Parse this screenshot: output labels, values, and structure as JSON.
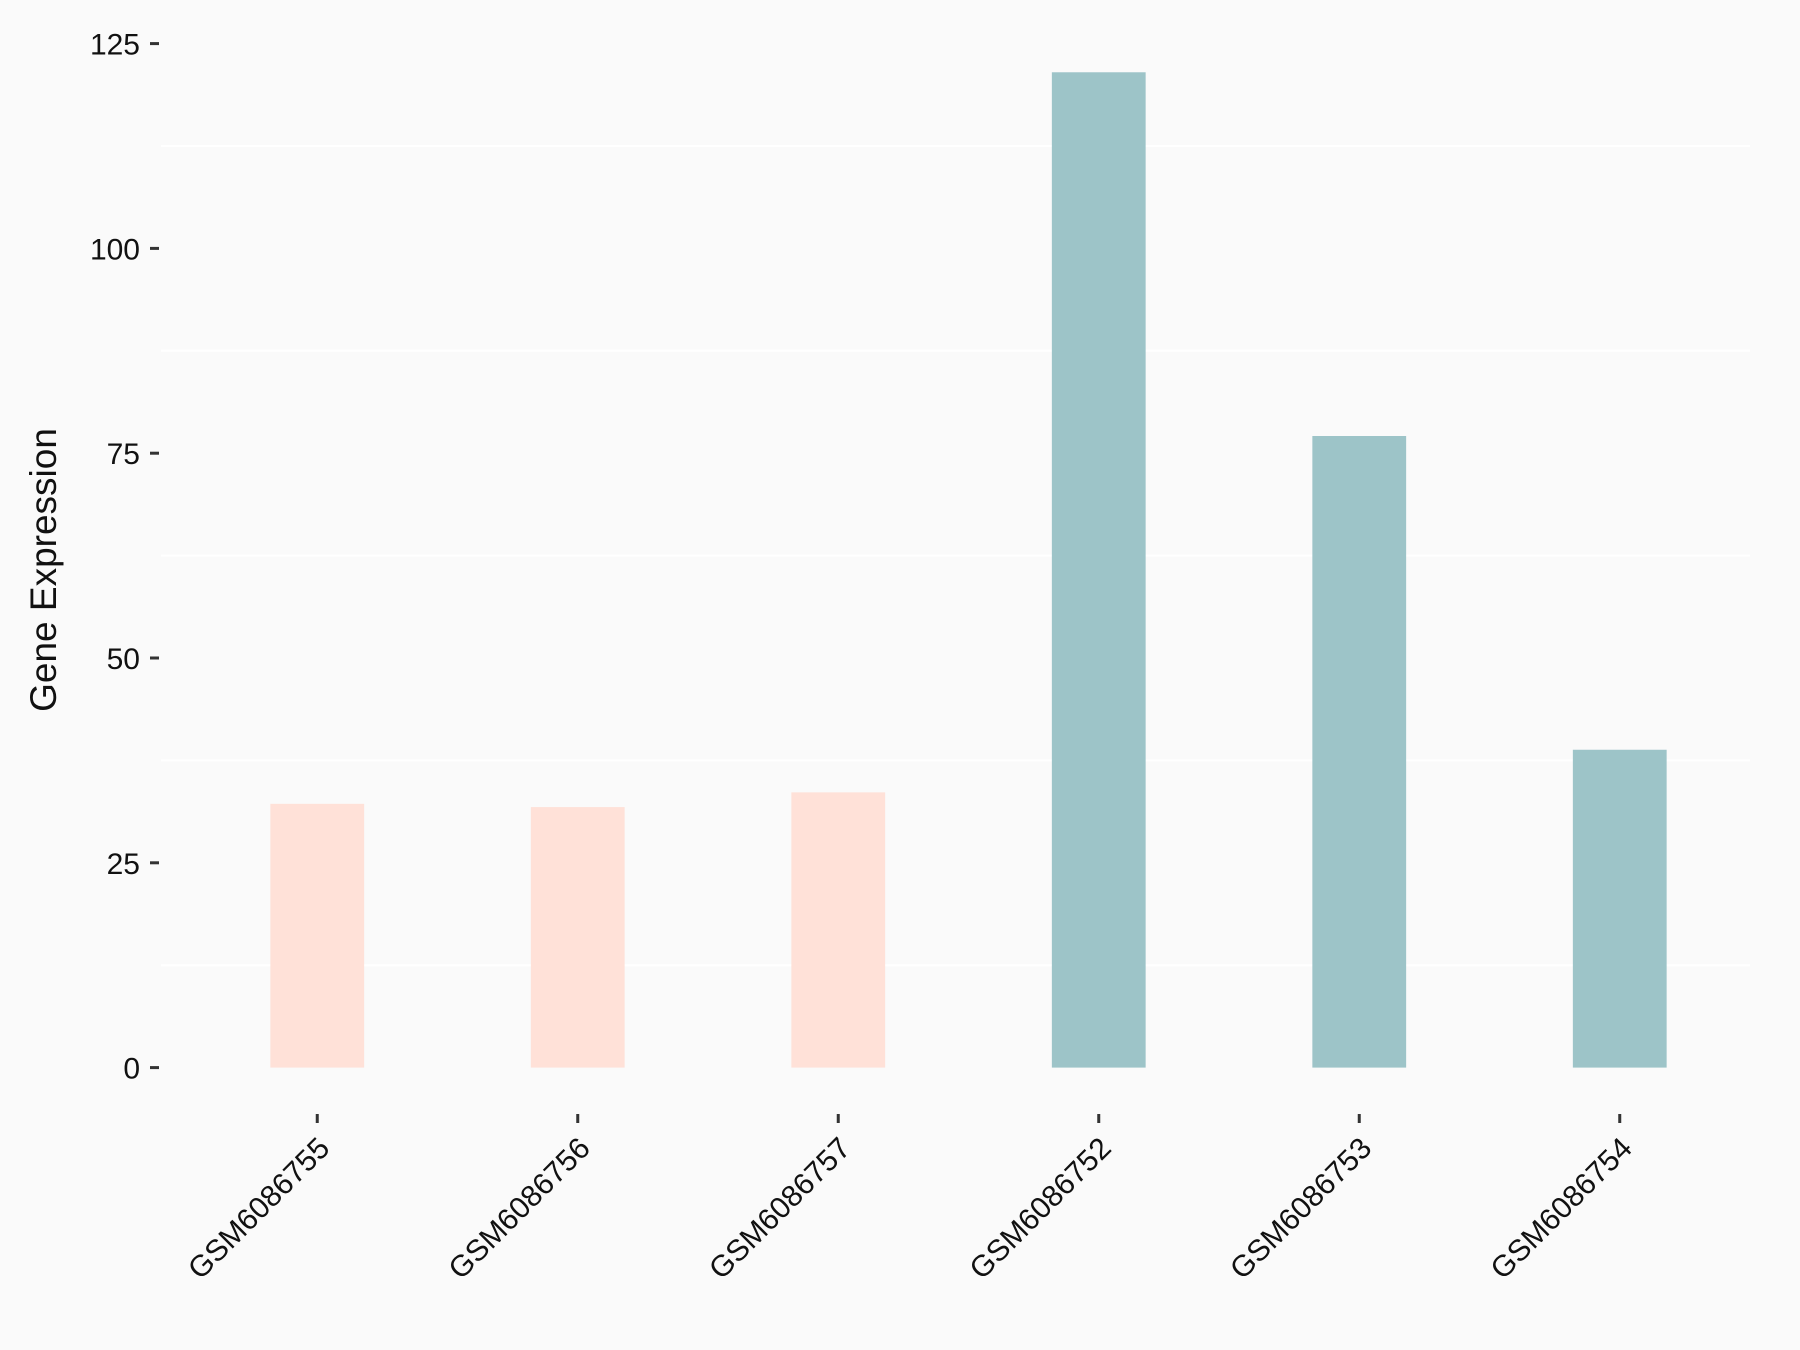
{
  "chart_data": {
    "type": "bar",
    "y_label": "Gene Expression",
    "categories": [
      "GSM6086755",
      "GSM6086756",
      "GSM6086757",
      "GSM6086752",
      "GSM6086753",
      "GSM6086754"
    ],
    "values": [
      32.2,
      31.8,
      33.6,
      121.5,
      77.1,
      38.8
    ],
    "colors": [
      "#FFE1D8",
      "#FFE1D8",
      "#FFE1D8",
      "#9DC4C8",
      "#9DC4C8",
      "#9DC4C8"
    ],
    "ylim": [
      0,
      125
    ],
    "yticks": [
      0,
      25,
      50,
      75,
      100,
      125
    ],
    "minor_yticks": [
      12.5,
      37.5,
      62.5,
      87.5,
      112.5
    ],
    "grid": true
  }
}
